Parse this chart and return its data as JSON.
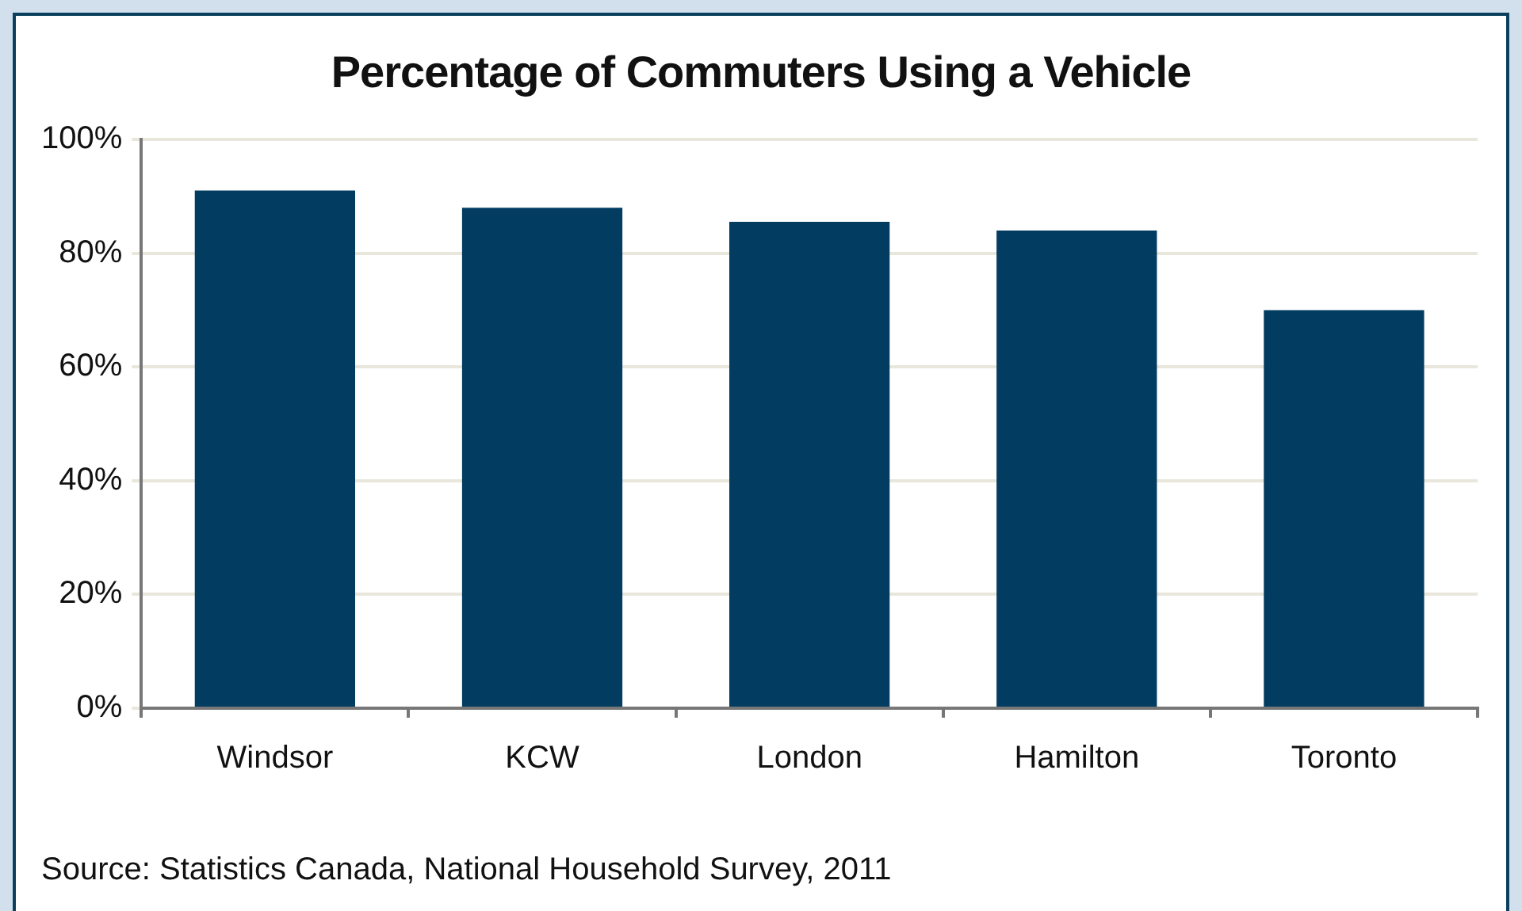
{
  "chart_data": {
    "type": "bar",
    "title": "Percentage of Commuters Using a Vehicle",
    "categories": [
      "Windsor",
      "KCW",
      "London",
      "Hamilton",
      "Toronto"
    ],
    "values": [
      91,
      88,
      85.5,
      84,
      70
    ],
    "color": "#023d61",
    "ylim": [
      0,
      100
    ],
    "yticks": [
      {
        "value": 0,
        "label": "0%"
      },
      {
        "value": 20,
        "label": "20%"
      },
      {
        "value": 40,
        "label": "40%"
      },
      {
        "value": 60,
        "label": "60%"
      },
      {
        "value": 80,
        "label": "80%"
      },
      {
        "value": 100,
        "label": "100%"
      }
    ],
    "grid": "y",
    "legend": false,
    "annotations": [
      "Source:  Statistics Canada, National Household Survey, 2011"
    ]
  }
}
